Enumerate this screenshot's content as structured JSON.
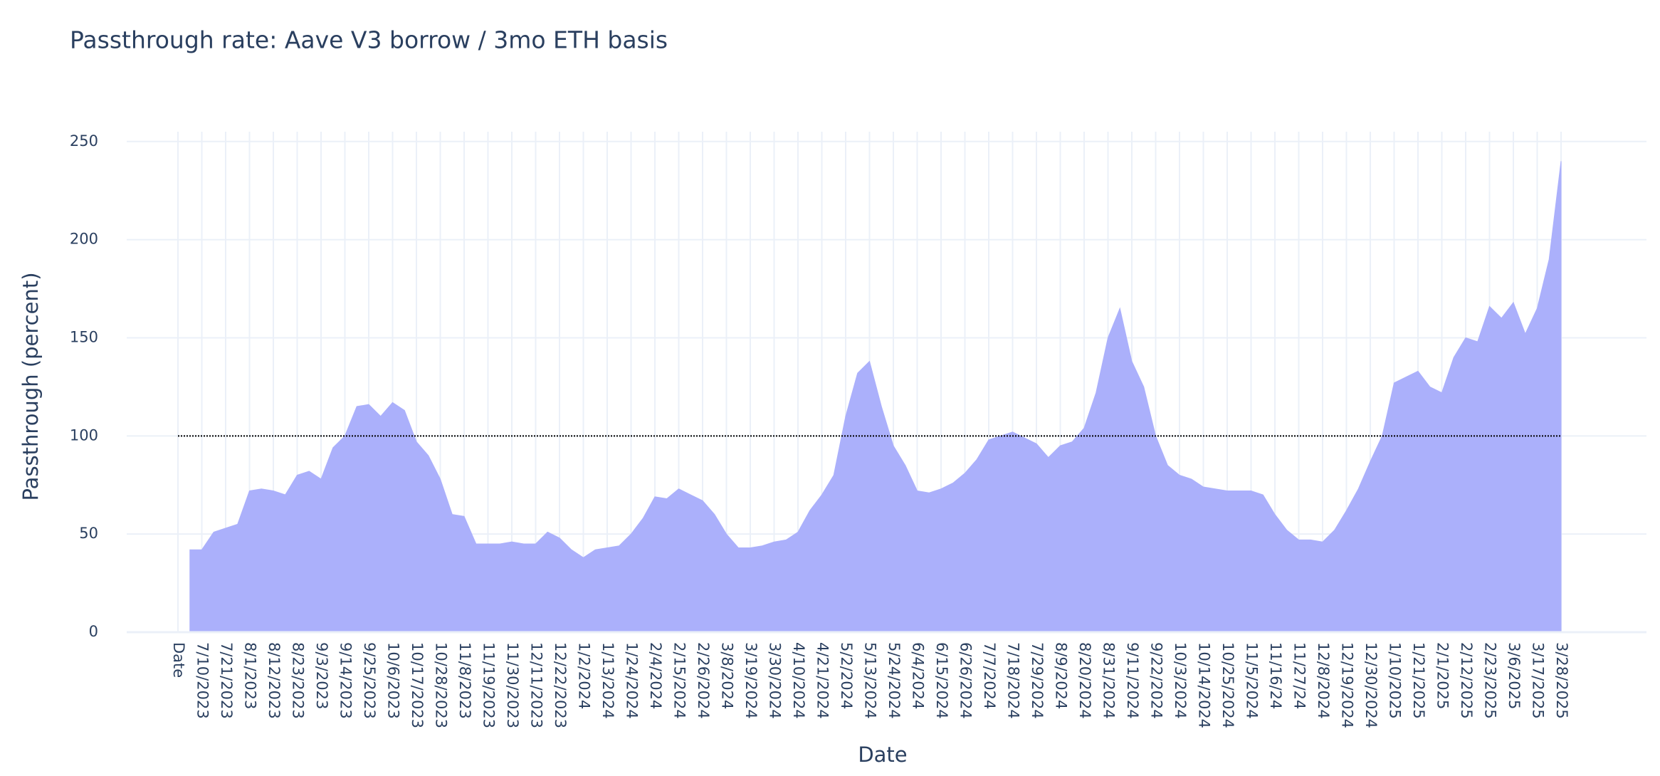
{
  "chart_data": {
    "type": "area",
    "title": "Passthrough rate: Aave V3 borrow / 3mo ETH basis",
    "x_label": "Date",
    "y_label": "Passthrough (percent)",
    "categories": [
      "Date",
      null,
      "7/10/2023",
      null,
      "7/21/2023",
      null,
      "8/1/2023",
      null,
      "8/12/2023",
      null,
      "8/23/2023",
      null,
      "9/3/2023",
      null,
      "9/14/2023",
      null,
      "9/25/2023",
      null,
      "10/6/2023",
      null,
      "10/17/2023",
      null,
      "10/28/2023",
      null,
      "11/8/2023",
      null,
      "11/19/2023",
      null,
      "11/30/2023",
      null,
      "12/11/2023",
      null,
      "12/22/2023",
      null,
      "1/2/2024",
      null,
      "1/13/2024",
      null,
      "1/24/2024",
      null,
      "2/4/2024",
      null,
      "2/15/2024",
      null,
      "2/26/2024",
      null,
      "3/8/2024",
      null,
      "3/19/2024",
      null,
      "3/30/2024",
      null,
      "4/10/2024",
      null,
      "4/21/2024",
      null,
      "5/2/2024",
      null,
      "5/13/2024",
      null,
      "5/24/2024",
      null,
      "6/4/2024",
      null,
      "6/15/2024",
      null,
      "6/26/2024",
      null,
      "7/7/2024",
      null,
      "7/18/2024",
      null,
      "7/29/2024",
      null,
      "8/9/2024",
      null,
      "8/20/2024",
      null,
      "8/31/2024",
      null,
      "9/11/2024",
      null,
      "9/22/2024",
      null,
      "10/3/2024",
      null,
      "10/14/2024",
      null,
      "10/25/2024",
      null,
      "11/5/2024",
      null,
      "11/16/24",
      null,
      "11/27/24",
      null,
      "12/8/2024",
      null,
      "12/19/2024",
      null,
      "12/30/2024",
      null,
      "1/10/2025",
      null,
      "1/21/2025",
      null,
      "2/1/2025",
      null,
      "2/12/2025",
      null,
      "2/23/2025",
      null,
      "3/6/2025",
      null,
      "3/17/2025",
      null,
      "3/28/2025"
    ],
    "values": [
      null,
      42,
      42,
      51,
      53,
      55,
      72,
      73,
      72,
      70,
      80,
      82,
      78,
      94,
      100,
      115,
      116,
      110,
      117,
      113,
      97,
      90,
      78,
      60,
      59,
      45,
      45,
      45,
      46,
      45,
      45,
      51,
      48,
      42,
      38,
      42,
      43,
      44,
      50,
      58,
      69,
      68,
      73,
      70,
      67,
      60,
      50,
      43,
      43,
      44,
      46,
      47,
      51,
      62,
      70,
      80,
      110,
      132,
      138,
      115,
      95,
      85,
      72,
      71,
      73,
      76,
      81,
      88,
      98,
      100,
      102,
      99,
      96,
      89,
      95,
      97,
      104,
      122,
      150,
      165,
      138,
      125,
      100,
      85,
      80,
      78,
      74,
      73,
      72,
      72,
      72,
      70,
      60,
      52,
      47,
      47,
      46,
      52,
      62,
      73,
      87,
      100,
      127,
      130,
      133,
      125,
      122,
      140,
      150,
      148,
      166,
      160,
      168,
      152,
      165,
      190,
      240
    ],
    "color": "#abb0fb",
    "hline": {
      "value": 100,
      "color": "#000000",
      "dash": "dot"
    },
    "ylim": [
      0,
      255
    ],
    "yticks": [
      0,
      50,
      100,
      150,
      200,
      250
    ],
    "grid": true
  }
}
